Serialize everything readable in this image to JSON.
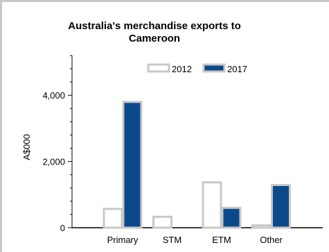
{
  "chart_data": {
    "type": "bar",
    "title": "Australia's merchandise exports to Cameroon",
    "xlabel": "",
    "ylabel": "A$000",
    "categories": [
      "Primary",
      "STM",
      "ETM",
      "Other"
    ],
    "series": [
      {
        "name": "2012",
        "values": [
          570,
          330,
          1370,
          70
        ],
        "fill": "#ffffff",
        "stroke": "#c8c8c8"
      },
      {
        "name": "2017",
        "values": [
          3800,
          0,
          600,
          1290
        ],
        "fill": "#0b4a8a",
        "stroke": "#c8c8c8"
      }
    ],
    "ylim": [
      0,
      5200
    ],
    "yticks": [
      0,
      2000,
      4000
    ],
    "ytick_labels": [
      "0",
      "2,000",
      "4,000"
    ],
    "legend_position": "top-center",
    "grid": false
  }
}
